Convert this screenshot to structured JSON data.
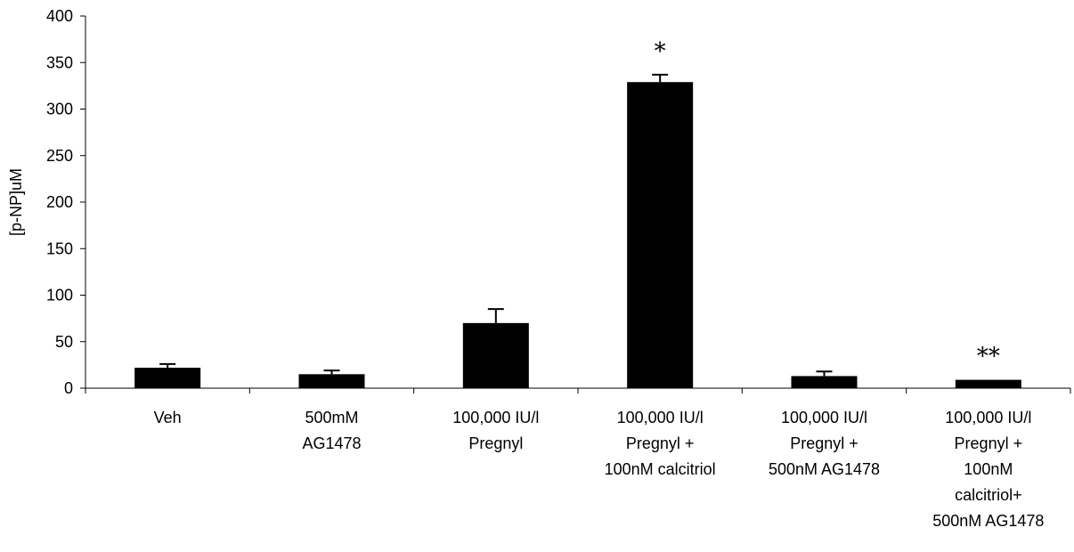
{
  "colors": {
    "bar": "#000000",
    "axis": "#000000",
    "background": "#ffffff"
  },
  "chart_data": {
    "type": "bar",
    "title": "",
    "xlabel": "",
    "ylabel": "[p-NP]uM",
    "ylim": [
      0,
      400
    ],
    "yticks": [
      0,
      50,
      100,
      150,
      200,
      250,
      300,
      350,
      400
    ],
    "grid": false,
    "legend": "none",
    "categories": [
      [
        "Veh"
      ],
      [
        "500mM",
        "AG1478"
      ],
      [
        "100,000 IU/l",
        "Pregnyl"
      ],
      [
        "100,000 IU/l",
        "Pregnyl +",
        "100nM calcitriol"
      ],
      [
        "100,000 IU/l",
        "Pregnyl +",
        "500nM AG1478"
      ],
      [
        "100,000 IU/l",
        "Pregnyl +",
        "100nM",
        "calcitriol+",
        "500nM AG1478"
      ]
    ],
    "values": [
      22,
      15,
      70,
      329,
      13,
      9
    ],
    "error_upper": [
      4,
      4,
      15,
      8,
      5,
      0
    ],
    "annotations": [
      "",
      "",
      "",
      "*",
      "",
      "**"
    ]
  }
}
